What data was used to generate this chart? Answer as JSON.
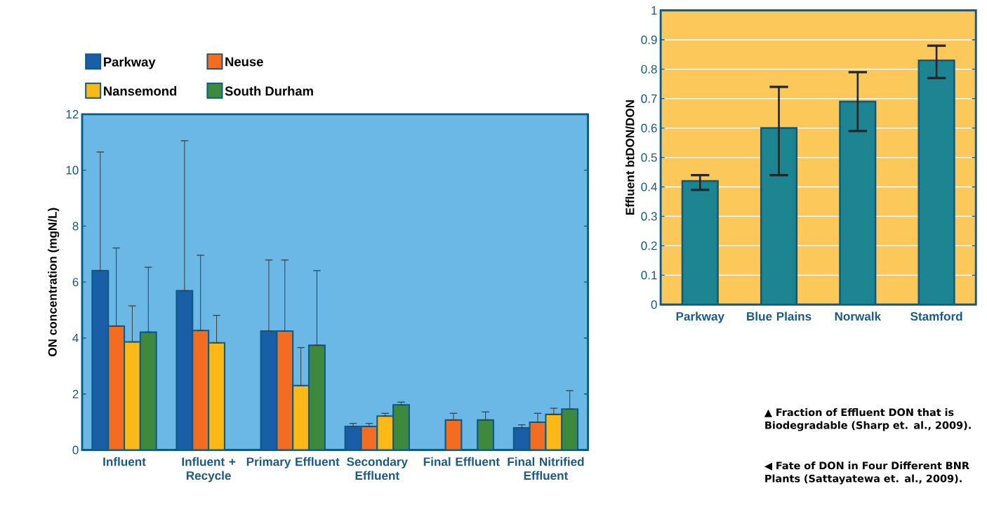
{
  "chart_data": [
    {
      "type": "bar",
      "categories": [
        "Influent",
        "Influent + Recycle",
        "Primary Effluent",
        "Secondary Effluent",
        "Final Effluent",
        "Final Nitrified Effluent"
      ],
      "ylabel": "ON concentration (mgN/L)",
      "ylim": [
        0,
        12
      ],
      "yticks": [
        0,
        2,
        4,
        6,
        8,
        10,
        12
      ],
      "legend": "top left",
      "series": [
        {
          "name": "Parkway",
          "color": "#1a5ea8",
          "values": [
            6.41,
            5.69,
            4.25,
            0.84,
            null,
            0.79
          ],
          "errors": [
            [
              6.41,
              10.65
            ],
            [
              5.69,
              11.05
            ],
            [
              4.25,
              6.79
            ],
            [
              0.84,
              0.95
            ],
            null,
            [
              0.79,
              0.9
            ]
          ]
        },
        {
          "name": "Neuse",
          "color": "#f26c22",
          "values": [
            4.43,
            4.27,
            4.25,
            0.84,
            1.07,
            0.99
          ],
          "errors": [
            [
              4.43,
              7.22
            ],
            [
              4.27,
              6.96
            ],
            [
              4.25,
              6.79
            ],
            [
              0.84,
              0.95
            ],
            [
              1.07,
              1.31
            ],
            [
              0.99,
              1.31
            ]
          ]
        },
        {
          "name": "Nansemond",
          "color": "#fbb917",
          "values": [
            3.86,
            3.83,
            2.3,
            1.21,
            null,
            1.27
          ],
          "errors": [
            [
              3.86,
              5.15
            ],
            [
              3.83,
              4.81
            ],
            [
              2.3,
              3.66
            ],
            [
              1.21,
              1.31
            ],
            null,
            [
              1.27,
              1.49
            ]
          ]
        },
        {
          "name": "South Durham",
          "color": "#3d8a3f",
          "values": [
            4.21,
            null,
            3.74,
            1.61,
            1.07,
            1.46
          ],
          "errors": [
            [
              4.21,
              6.53
            ],
            null,
            [
              3.74,
              6.41
            ],
            [
              1.61,
              1.71
            ],
            [
              1.07,
              1.36
            ],
            [
              1.46,
              2.12
            ]
          ]
        }
      ],
      "annotations": [
        "◀ Fate of DON in Four Different BNR Plants (Sattayatewa et. al., 2009)."
      ]
    },
    {
      "type": "bar",
      "categories": [
        "Parkway",
        "Blue Plains",
        "Norwalk",
        "Stamford"
      ],
      "ylabel": "Effluent btDON/DON",
      "ylim": [
        0,
        1
      ],
      "yticks": [
        0,
        0.1,
        0.2,
        0.3,
        0.4,
        0.5,
        0.6,
        0.7,
        0.8,
        0.9,
        1
      ],
      "grid": "y",
      "color": "#1d8592",
      "values": [
        0.42,
        0.6,
        0.69,
        0.83
      ],
      "errors": [
        [
          0.39,
          0.44
        ],
        [
          0.44,
          0.74
        ],
        [
          0.59,
          0.79
        ],
        [
          0.77,
          0.88
        ]
      ],
      "annotations": [
        "▲ Fraction of Effluent DON that is Biodegradable (Sharp et. al., 2009)."
      ]
    }
  ]
}
